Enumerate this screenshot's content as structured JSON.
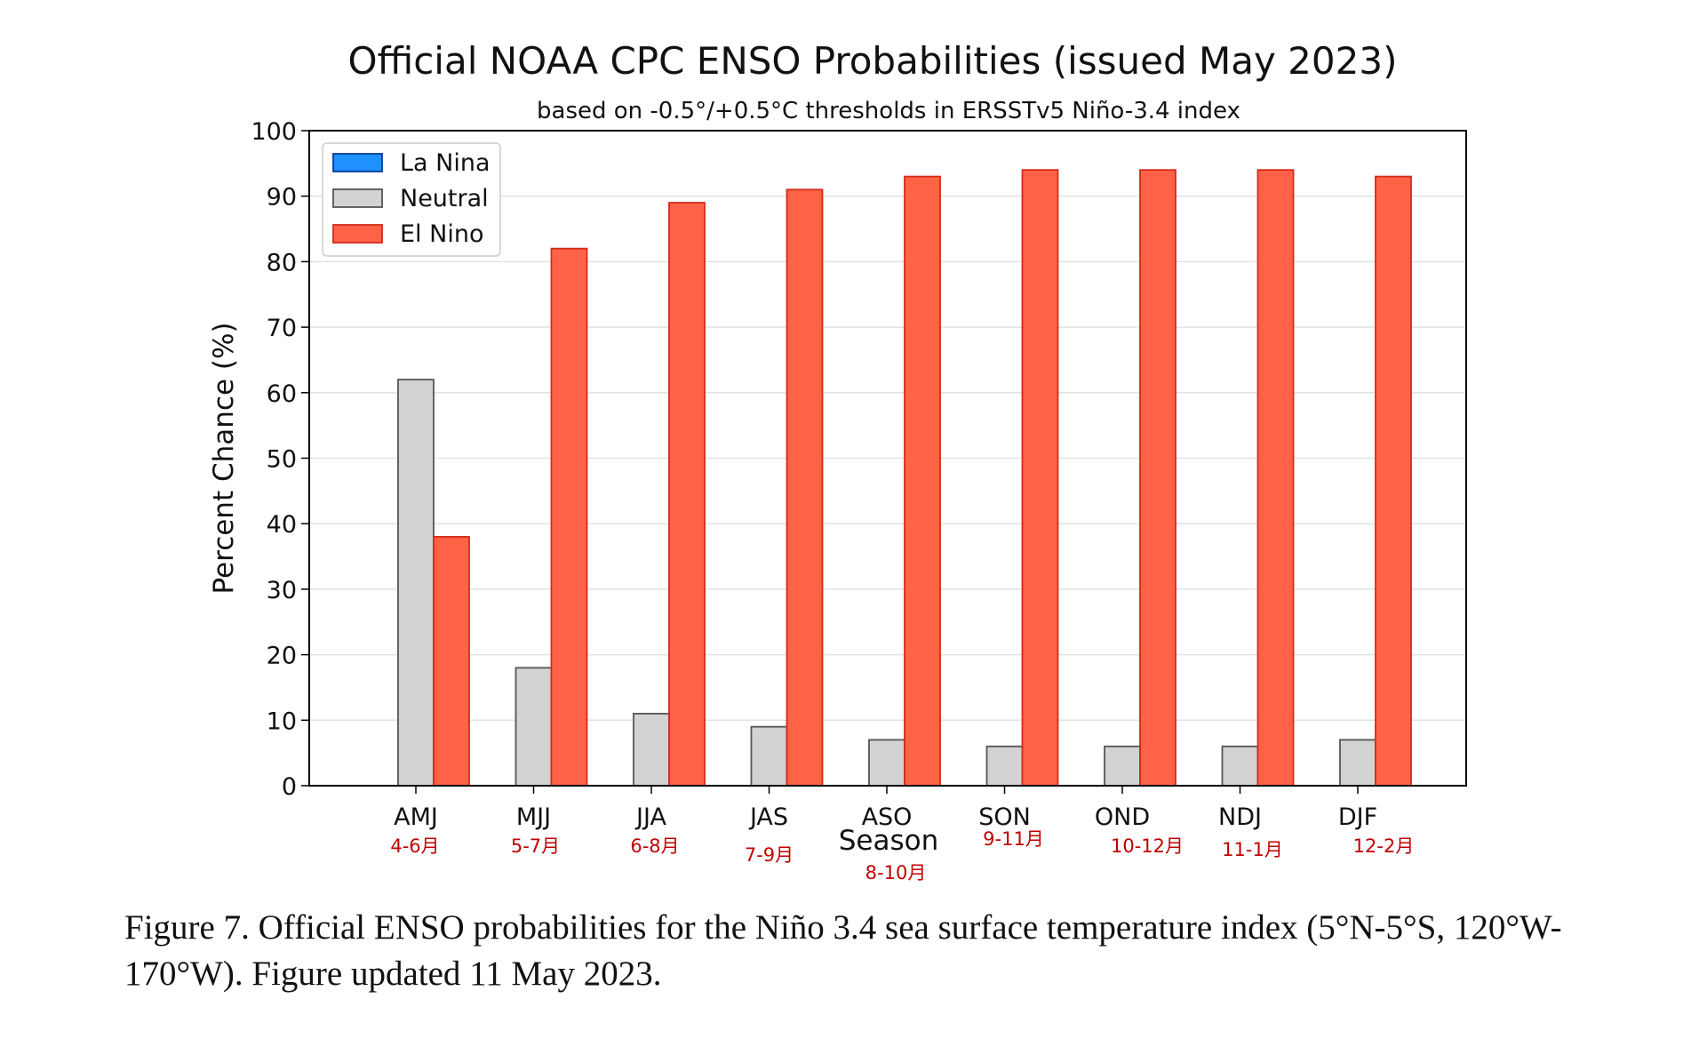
{
  "chart_data": {
    "type": "bar",
    "title": "Official NOAA CPC ENSO Probabilities (issued May 2023)",
    "subtitle": "based on -0.5°/+0.5°C thresholds in ERSSTv5 Niño-3.4 index",
    "xlabel": "Season",
    "ylabel": "Percent Chance (%)",
    "ylim": [
      0,
      100
    ],
    "yticks": [
      0,
      10,
      20,
      30,
      40,
      50,
      60,
      70,
      80,
      90,
      100
    ],
    "grid": true,
    "legend_position": "top-left",
    "categories": [
      "AMJ",
      "MJJ",
      "JJA",
      "JAS",
      "ASO",
      "SON",
      "OND",
      "NDJ",
      "DJF"
    ],
    "month_notes": [
      "4-6月",
      "5-7月",
      "6-8月",
      "7-9月",
      "8-10月",
      "9-11月",
      "10-12月",
      "11-1月",
      "12-2月"
    ],
    "series": [
      {
        "name": "La Nina",
        "color": "#1e90ff",
        "values": [
          0,
          0,
          0,
          0,
          0,
          0,
          0,
          0,
          0
        ]
      },
      {
        "name": "Neutral",
        "color": "#d3d3d3",
        "values": [
          62,
          18,
          11,
          9,
          7,
          6,
          6,
          6,
          7
        ]
      },
      {
        "name": "El Nino",
        "color": "#ff6347",
        "values": [
          38,
          82,
          89,
          91,
          93,
          94,
          94,
          94,
          93
        ]
      }
    ]
  },
  "caption": "Figure 7. Official ENSO probabilities for the Niño 3.4 sea surface temperature index (5°N-5°S, 120°W-170°W). Figure updated 11 May 2023."
}
